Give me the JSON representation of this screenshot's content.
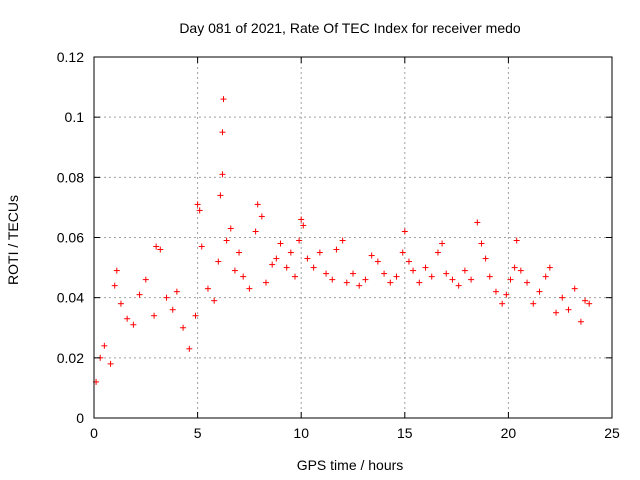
{
  "chart_data": {
    "type": "scatter",
    "title": "Day 081 of 2021, Rate Of TEC Index for receiver medo",
    "xlabel": "GPS time / hours",
    "ylabel": "ROTI / TECUs",
    "xlim": [
      0,
      25
    ],
    "ylim": [
      0,
      0.12
    ],
    "x_ticks": [
      {
        "value": 0,
        "label": "0"
      },
      {
        "value": 5,
        "label": "5"
      },
      {
        "value": 10,
        "label": "10"
      },
      {
        "value": 15,
        "label": "15"
      },
      {
        "value": 20,
        "label": "20"
      },
      {
        "value": 25,
        "label": "25"
      }
    ],
    "y_ticks": [
      {
        "value": 0,
        "label": "0"
      },
      {
        "value": 0.02,
        "label": "0.02"
      },
      {
        "value": 0.04,
        "label": "0.04"
      },
      {
        "value": 0.06,
        "label": "0.06"
      },
      {
        "value": 0.08,
        "label": "0.08"
      },
      {
        "value": 0.1,
        "label": "0.1"
      },
      {
        "value": 0.12,
        "label": "0.12"
      }
    ],
    "grid": true,
    "marker": "+",
    "series_color": "#ff0000",
    "series": [
      {
        "points": [
          [
            0.1,
            0.012
          ],
          [
            0.3,
            0.02
          ],
          [
            0.5,
            0.024
          ],
          [
            0.8,
            0.018
          ],
          [
            1.0,
            0.044
          ],
          [
            1.1,
            0.049
          ],
          [
            1.3,
            0.038
          ],
          [
            1.6,
            0.033
          ],
          [
            1.9,
            0.031
          ],
          [
            2.2,
            0.041
          ],
          [
            2.5,
            0.046
          ],
          [
            2.9,
            0.034
          ],
          [
            3.0,
            0.057
          ],
          [
            3.2,
            0.056
          ],
          [
            3.5,
            0.04
          ],
          [
            3.8,
            0.036
          ],
          [
            4.0,
            0.042
          ],
          [
            4.3,
            0.03
          ],
          [
            4.6,
            0.023
          ],
          [
            4.9,
            0.034
          ],
          [
            5.0,
            0.071
          ],
          [
            5.1,
            0.069
          ],
          [
            5.2,
            0.057
          ],
          [
            5.5,
            0.043
          ],
          [
            5.8,
            0.039
          ],
          [
            6.0,
            0.052
          ],
          [
            6.1,
            0.074
          ],
          [
            6.2,
            0.081
          ],
          [
            6.2,
            0.095
          ],
          [
            6.25,
            0.106
          ],
          [
            6.4,
            0.059
          ],
          [
            6.6,
            0.063
          ],
          [
            6.8,
            0.049
          ],
          [
            7.0,
            0.055
          ],
          [
            7.2,
            0.047
          ],
          [
            7.5,
            0.043
          ],
          [
            7.8,
            0.062
          ],
          [
            7.9,
            0.071
          ],
          [
            8.1,
            0.067
          ],
          [
            8.3,
            0.045
          ],
          [
            8.6,
            0.051
          ],
          [
            8.8,
            0.053
          ],
          [
            9.0,
            0.058
          ],
          [
            9.3,
            0.05
          ],
          [
            9.5,
            0.055
          ],
          [
            9.7,
            0.047
          ],
          [
            9.9,
            0.059
          ],
          [
            10.0,
            0.066
          ],
          [
            10.1,
            0.064
          ],
          [
            10.3,
            0.053
          ],
          [
            10.6,
            0.05
          ],
          [
            10.9,
            0.055
          ],
          [
            11.2,
            0.048
          ],
          [
            11.5,
            0.046
          ],
          [
            11.7,
            0.056
          ],
          [
            12.0,
            0.059
          ],
          [
            12.2,
            0.045
          ],
          [
            12.5,
            0.048
          ],
          [
            12.8,
            0.044
          ],
          [
            13.1,
            0.046
          ],
          [
            13.4,
            0.054
          ],
          [
            13.7,
            0.052
          ],
          [
            14.0,
            0.048
          ],
          [
            14.3,
            0.045
          ],
          [
            14.6,
            0.047
          ],
          [
            14.9,
            0.055
          ],
          [
            15.0,
            0.062
          ],
          [
            15.2,
            0.052
          ],
          [
            15.4,
            0.049
          ],
          [
            15.7,
            0.045
          ],
          [
            16.0,
            0.05
          ],
          [
            16.3,
            0.047
          ],
          [
            16.6,
            0.055
          ],
          [
            16.8,
            0.058
          ],
          [
            17.0,
            0.048
          ],
          [
            17.3,
            0.046
          ],
          [
            17.6,
            0.044
          ],
          [
            17.9,
            0.049
          ],
          [
            18.2,
            0.046
          ],
          [
            18.5,
            0.065
          ],
          [
            18.7,
            0.058
          ],
          [
            18.9,
            0.053
          ],
          [
            19.1,
            0.047
          ],
          [
            19.4,
            0.042
          ],
          [
            19.7,
            0.038
          ],
          [
            19.9,
            0.041
          ],
          [
            20.1,
            0.046
          ],
          [
            20.3,
            0.05
          ],
          [
            20.4,
            0.059
          ],
          [
            20.6,
            0.049
          ],
          [
            20.9,
            0.045
          ],
          [
            21.2,
            0.038
          ],
          [
            21.5,
            0.042
          ],
          [
            21.8,
            0.047
          ],
          [
            22.0,
            0.05
          ],
          [
            22.3,
            0.035
          ],
          [
            22.6,
            0.04
          ],
          [
            22.9,
            0.036
          ],
          [
            23.2,
            0.043
          ],
          [
            23.5,
            0.032
          ],
          [
            23.7,
            0.039
          ],
          [
            23.9,
            0.038
          ]
        ]
      }
    ]
  }
}
